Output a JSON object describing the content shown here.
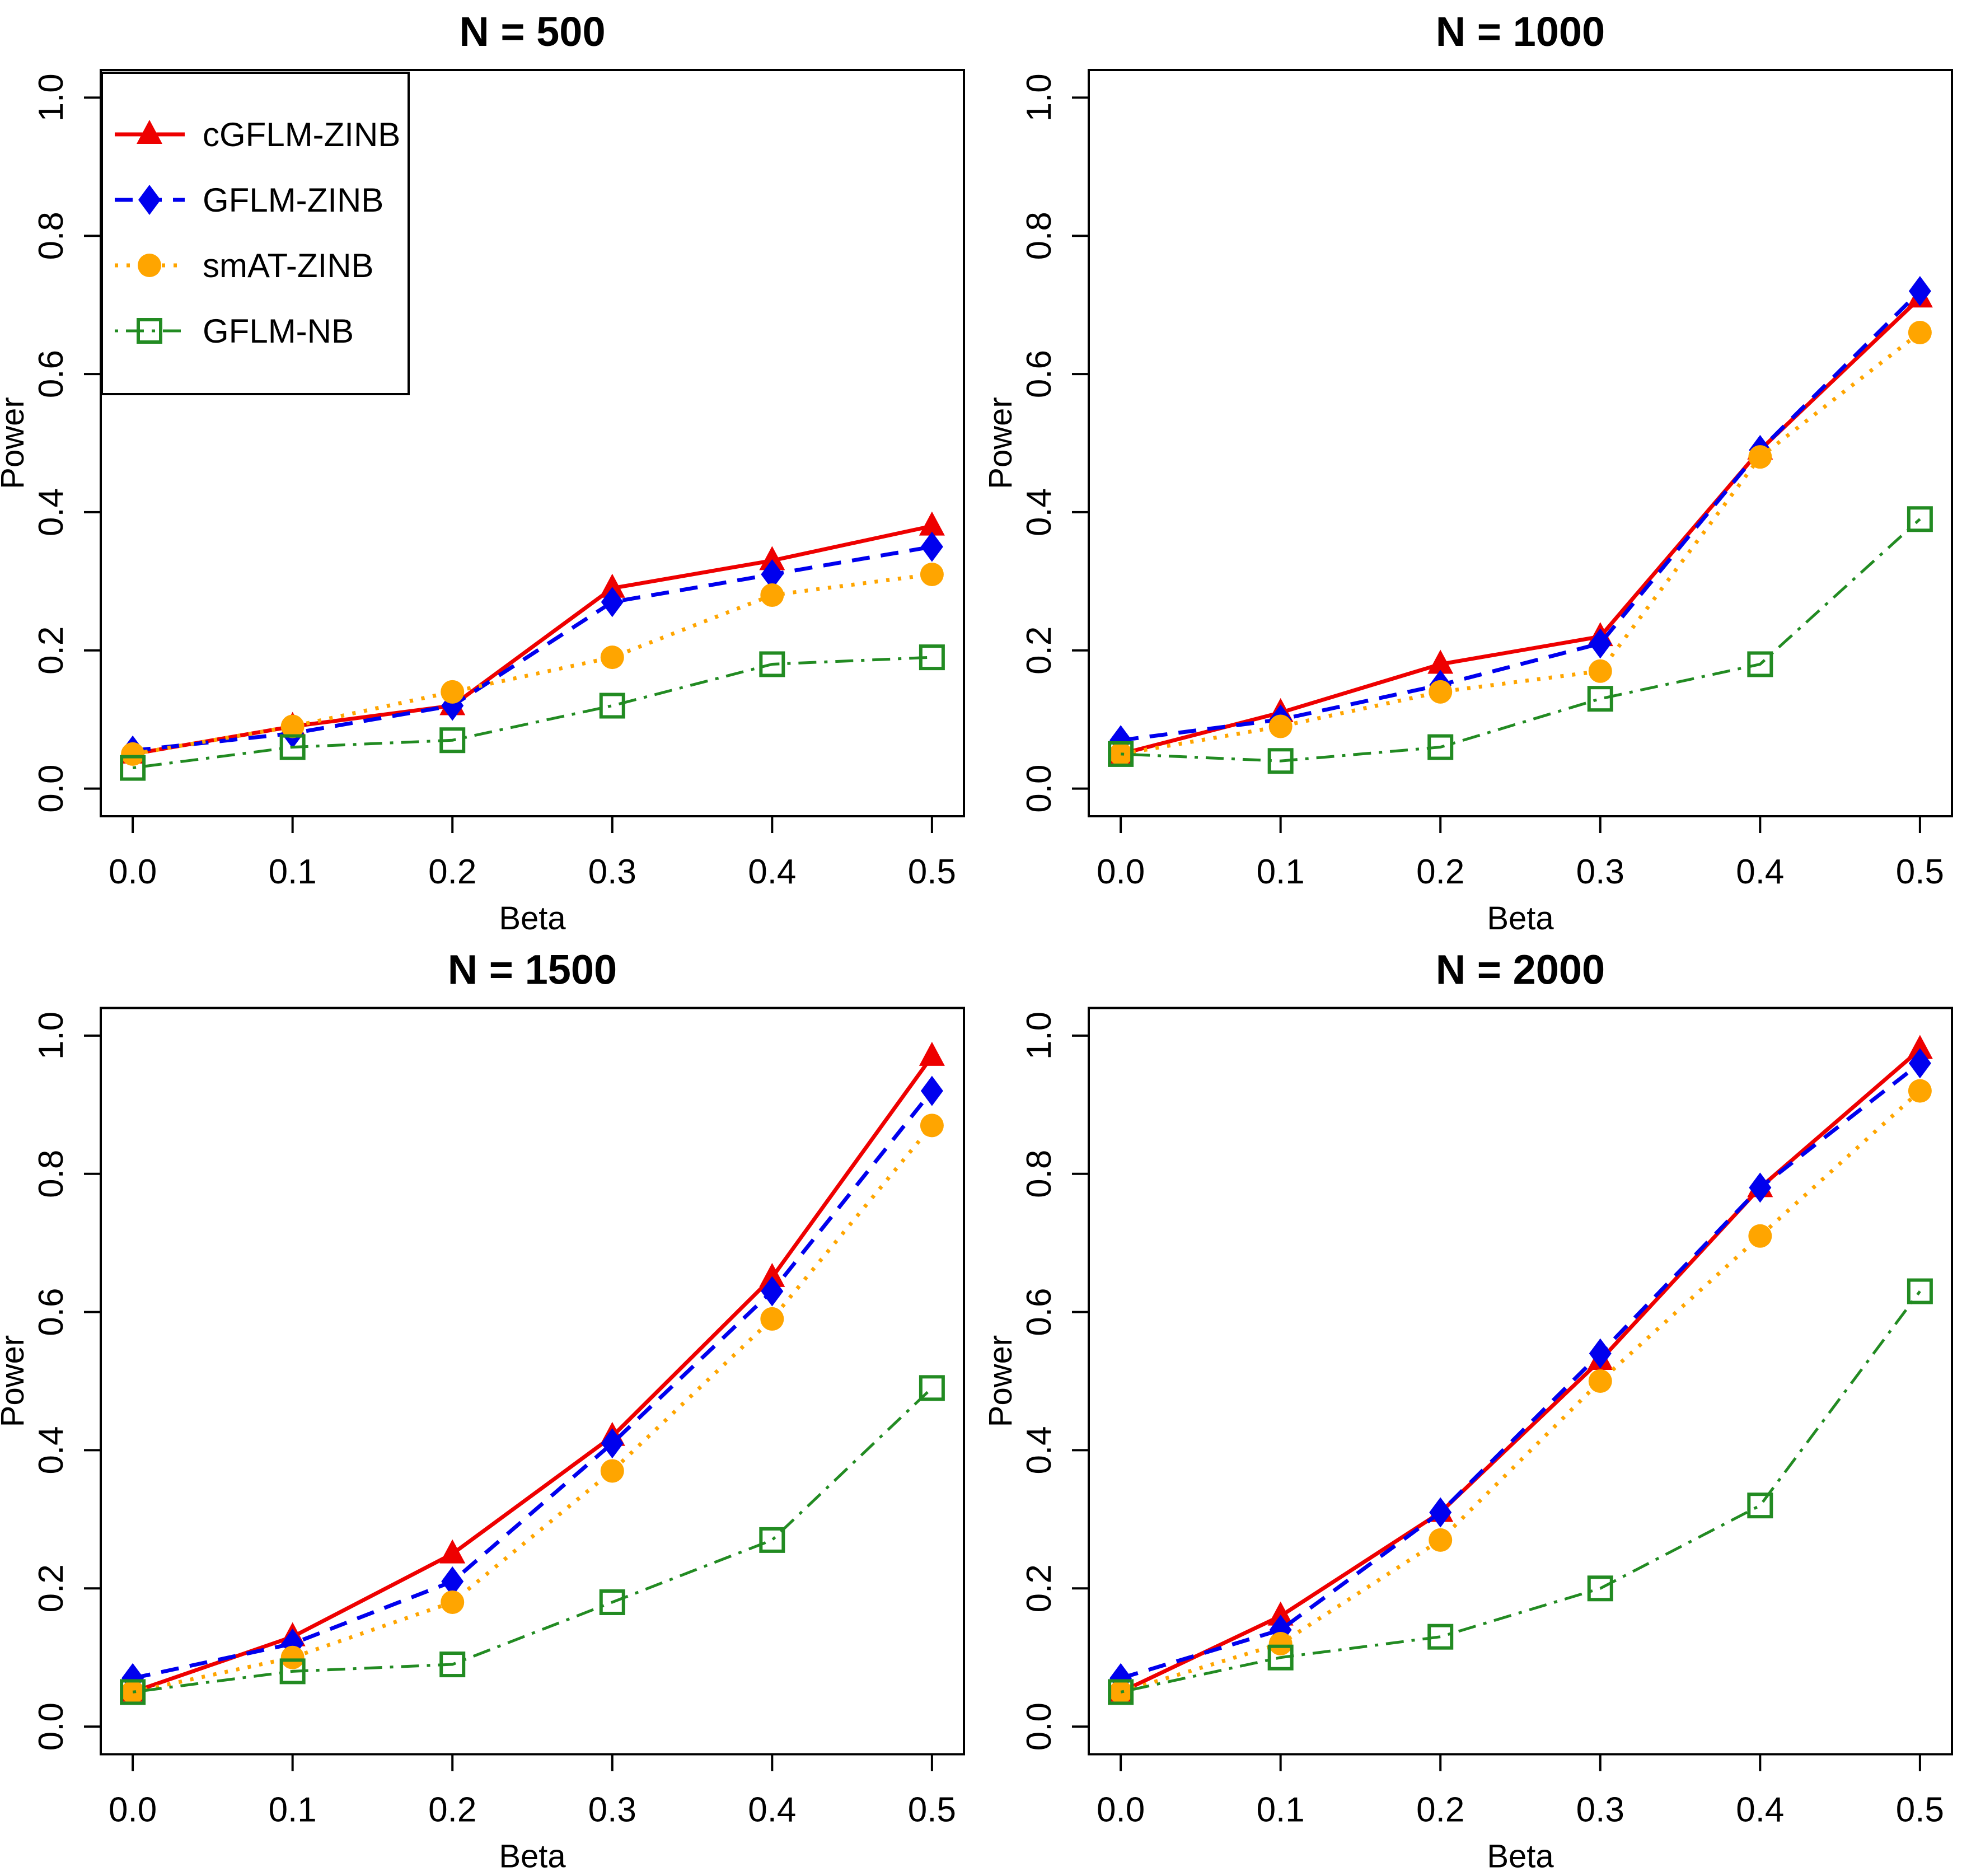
{
  "figure": {
    "background": "#ffffff",
    "axis_color": "#000000",
    "text_color": "#000000"
  },
  "series_styles": [
    {
      "name": "cGFLM-ZINB",
      "color": "#ee0000",
      "linetype": "solid",
      "marker": "triangle-filled",
      "line_width": 7
    },
    {
      "name": "GFLM-ZINB",
      "color": "#0000ee",
      "linetype": "dashed",
      "marker": "diamond-filled",
      "line_width": 7
    },
    {
      "name": "smAT-ZINB",
      "color": "#ffa500",
      "linetype": "dotted",
      "marker": "circle-filled",
      "line_width": 7
    },
    {
      "name": "GFLM-NB",
      "color": "#228b22",
      "linetype": "dotdash",
      "marker": "square-open",
      "line_width": 5
    }
  ],
  "legend": {
    "show_on_chart": 0,
    "entries": [
      "cGFLM-ZINB",
      "GFLM-ZINB",
      "smAT-ZINB",
      "GFLM-NB"
    ]
  },
  "chart_data": [
    {
      "type": "line",
      "title": "N = 500",
      "xlabel": "Beta",
      "ylabel": "Power",
      "x": [
        0.0,
        0.1,
        0.2,
        0.3,
        0.4,
        0.5
      ],
      "x_tick_labels": [
        "0.0",
        "0.1",
        "0.2",
        "0.3",
        "0.4",
        "0.5"
      ],
      "y_ticks": [
        0.0,
        0.2,
        0.4,
        0.6,
        0.8,
        1.0
      ],
      "y_tick_labels": [
        "0.0",
        "0.2",
        "0.4",
        "0.6",
        "0.8",
        "1.0"
      ],
      "xlim": [
        -0.02,
        0.52
      ],
      "ylim": [
        -0.04,
        1.04
      ],
      "grid": false,
      "legend": true,
      "series": [
        {
          "name": "cGFLM-ZINB",
          "values": [
            0.05,
            0.09,
            0.12,
            0.29,
            0.33,
            0.38
          ]
        },
        {
          "name": "GFLM-ZINB",
          "values": [
            0.055,
            0.08,
            0.12,
            0.27,
            0.31,
            0.35
          ]
        },
        {
          "name": "smAT-ZINB",
          "values": [
            0.05,
            0.09,
            0.14,
            0.19,
            0.28,
            0.31
          ]
        },
        {
          "name": "GFLM-NB",
          "values": [
            0.03,
            0.06,
            0.07,
            0.12,
            0.18,
            0.19
          ]
        }
      ]
    },
    {
      "type": "line",
      "title": "N = 1000",
      "xlabel": "Beta",
      "ylabel": "Power",
      "x": [
        0.0,
        0.1,
        0.2,
        0.3,
        0.4,
        0.5
      ],
      "x_tick_labels": [
        "0.0",
        "0.1",
        "0.2",
        "0.3",
        "0.4",
        "0.5"
      ],
      "y_ticks": [
        0.0,
        0.2,
        0.4,
        0.6,
        0.8,
        1.0
      ],
      "y_tick_labels": [
        "0.0",
        "0.2",
        "0.4",
        "0.6",
        "0.8",
        "1.0"
      ],
      "xlim": [
        -0.02,
        0.52
      ],
      "ylim": [
        -0.04,
        1.04
      ],
      "grid": false,
      "legend": false,
      "series": [
        {
          "name": "cGFLM-ZINB",
          "values": [
            0.05,
            0.11,
            0.18,
            0.22,
            0.49,
            0.71
          ]
        },
        {
          "name": "GFLM-ZINB",
          "values": [
            0.07,
            0.1,
            0.15,
            0.21,
            0.49,
            0.72
          ]
        },
        {
          "name": "smAT-ZINB",
          "values": [
            0.05,
            0.09,
            0.14,
            0.17,
            0.48,
            0.66
          ]
        },
        {
          "name": "GFLM-NB",
          "values": [
            0.05,
            0.04,
            0.06,
            0.13,
            0.18,
            0.39
          ]
        }
      ]
    },
    {
      "type": "line",
      "title": "N = 1500",
      "xlabel": "Beta",
      "ylabel": "Power",
      "x": [
        0.0,
        0.1,
        0.2,
        0.3,
        0.4,
        0.5
      ],
      "x_tick_labels": [
        "0.0",
        "0.1",
        "0.2",
        "0.3",
        "0.4",
        "0.5"
      ],
      "y_ticks": [
        0.0,
        0.2,
        0.4,
        0.6,
        0.8,
        1.0
      ],
      "y_tick_labels": [
        "0.0",
        "0.2",
        "0.4",
        "0.6",
        "0.8",
        "1.0"
      ],
      "xlim": [
        -0.02,
        0.52
      ],
      "ylim": [
        -0.04,
        1.04
      ],
      "grid": false,
      "legend": false,
      "series": [
        {
          "name": "cGFLM-ZINB",
          "values": [
            0.05,
            0.13,
            0.25,
            0.42,
            0.65,
            0.97
          ]
        },
        {
          "name": "GFLM-ZINB",
          "values": [
            0.07,
            0.12,
            0.21,
            0.41,
            0.63,
            0.92
          ]
        },
        {
          "name": "smAT-ZINB",
          "values": [
            0.05,
            0.1,
            0.18,
            0.37,
            0.59,
            0.87
          ]
        },
        {
          "name": "GFLM-NB",
          "values": [
            0.05,
            0.08,
            0.09,
            0.18,
            0.27,
            0.49
          ]
        }
      ]
    },
    {
      "type": "line",
      "title": "N = 2000",
      "xlabel": "Beta",
      "ylabel": "Power",
      "x": [
        0.0,
        0.1,
        0.2,
        0.3,
        0.4,
        0.5
      ],
      "x_tick_labels": [
        "0.0",
        "0.1",
        "0.2",
        "0.3",
        "0.4",
        "0.5"
      ],
      "y_ticks": [
        0.0,
        0.2,
        0.4,
        0.6,
        0.8,
        1.0
      ],
      "y_tick_labels": [
        "0.0",
        "0.2",
        "0.4",
        "0.6",
        "0.8",
        "1.0"
      ],
      "xlim": [
        -0.02,
        0.52
      ],
      "ylim": [
        -0.04,
        1.04
      ],
      "grid": false,
      "legend": false,
      "series": [
        {
          "name": "cGFLM-ZINB",
          "values": [
            0.05,
            0.16,
            0.31,
            0.53,
            0.78,
            0.98
          ]
        },
        {
          "name": "GFLM-ZINB",
          "values": [
            0.07,
            0.14,
            0.31,
            0.54,
            0.78,
            0.96
          ]
        },
        {
          "name": "smAT-ZINB",
          "values": [
            0.05,
            0.12,
            0.27,
            0.5,
            0.71,
            0.92
          ]
        },
        {
          "name": "GFLM-NB",
          "values": [
            0.05,
            0.1,
            0.13,
            0.2,
            0.32,
            0.63
          ]
        }
      ]
    }
  ]
}
